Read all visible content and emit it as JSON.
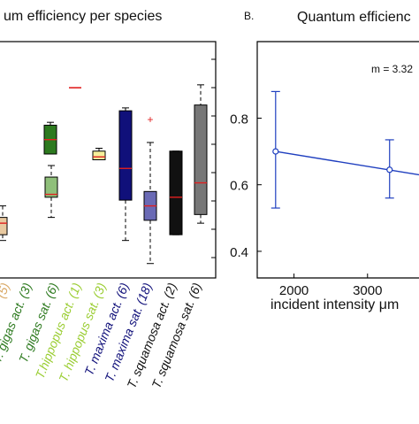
{
  "chart_data": [
    {
      "type": "box",
      "panel_label": "",
      "title": "um efficiency per species",
      "y_range": [
        0.27,
        1.09
      ],
      "groups": [
        {
          "label": "(5)",
          "color": "#e8c9a0",
          "box_q1": 0.42,
          "box_q3": 0.48,
          "median": 0.46,
          "whisker_low": 0.4,
          "whisker_high": 0.52
        },
        {
          "label": "T. gigas act. (3)",
          "color": "#2d7a1f",
          "box_q1": 0.7,
          "box_q3": 0.8,
          "median": 0.75,
          "whisker_low": 0.7,
          "whisker_high": 0.81
        },
        {
          "label": "T. gigas sat. (6)",
          "color": "#8fbf7a",
          "box_q1": 0.55,
          "box_q3": 0.62,
          "median": 0.56,
          "whisker_low": 0.48,
          "whisker_high": 0.66
        },
        {
          "label": "T.hippopus act. (1)",
          "color": "#c0392b",
          "box_q1": 0.93,
          "box_q3": 0.93,
          "median": 0.93,
          "whisker_low": 0.93,
          "whisker_high": 0.93
        },
        {
          "label": "T. hippopus sat. (3)",
          "color": "#f5ef9a",
          "box_q1": 0.68,
          "box_q3": 0.71,
          "median": 0.69,
          "whisker_low": 0.68,
          "whisker_high": 0.72
        },
        {
          "label": "T. maxima act. (6)",
          "color": "#10107a",
          "box_q1": 0.54,
          "box_q3": 0.85,
          "median": 0.65,
          "whisker_low": 0.4,
          "whisker_high": 0.86
        },
        {
          "label": "T. maxima sat. (18)",
          "color": "#6a6ab5",
          "box_q1": 0.47,
          "box_q3": 0.57,
          "median": 0.52,
          "whisker_low": 0.32,
          "whisker_high": 0.74,
          "outliers": [
            0.82
          ]
        },
        {
          "label": "T. squamosa act. (2)",
          "color": "#111111",
          "box_q1": 0.42,
          "box_q3": 0.71,
          "median": 0.55,
          "whisker_low": 0.42,
          "whisker_high": 0.71
        },
        {
          "label": "T. squamosa sat. (6)",
          "color": "#777777",
          "box_q1": 0.49,
          "box_q3": 0.87,
          "median": 0.6,
          "whisker_low": 0.46,
          "whisker_high": 0.94
        }
      ]
    },
    {
      "type": "line",
      "panel_label": "B.",
      "title": "Quantum efficienc",
      "xlabel": "incident intensity μm",
      "xlim": [
        1500,
        3700
      ],
      "ylim": [
        0.32,
        1.03
      ],
      "x_ticks": [
        2000,
        3000
      ],
      "y_ticks": [
        0.4,
        0.6,
        0.8
      ],
      "annotation": "m = 3.32",
      "color": "#1f3fbf",
      "points": [
        {
          "x": 1750,
          "y": 0.7,
          "err_low": 0.53,
          "err_high": 0.88
        },
        {
          "x": 3300,
          "y": 0.645,
          "err_low": 0.56,
          "err_high": 0.735
        }
      ],
      "line_end": {
        "x": 3700,
        "y": 0.63
      }
    }
  ]
}
